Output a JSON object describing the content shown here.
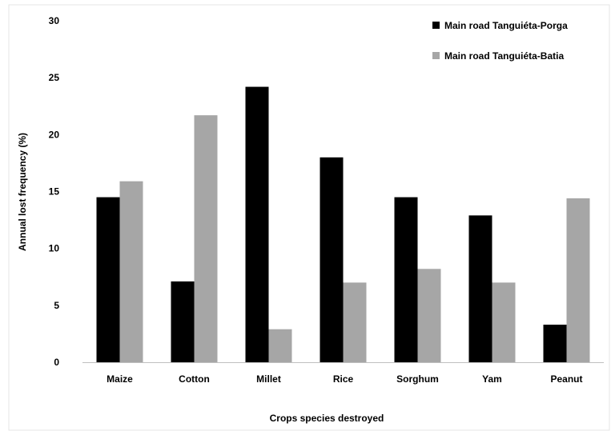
{
  "chart_data": {
    "type": "bar",
    "categories": [
      "Maize",
      "Cotton",
      "Millet",
      "Rice",
      "Sorghum",
      "Yam",
      "Peanut"
    ],
    "series": [
      {
        "name": "Main road Tanguiéta-Porga",
        "color": "#000000",
        "values": [
          14.5,
          7.1,
          24.2,
          18.0,
          14.5,
          12.9,
          3.3
        ]
      },
      {
        "name": "Main road Tanguiéta-Batia",
        "color": "#a6a6a6",
        "values": [
          15.9,
          21.7,
          2.9,
          7.0,
          8.2,
          7.0,
          14.4
        ]
      }
    ],
    "ylabel": "Annual lost frequency (%)",
    "xlabel": "Crops species destroyed",
    "ylim": [
      0,
      30
    ],
    "yticks": [
      0,
      5,
      10,
      15,
      20,
      25,
      30
    ],
    "grid": false,
    "legend_position": "top-right"
  }
}
